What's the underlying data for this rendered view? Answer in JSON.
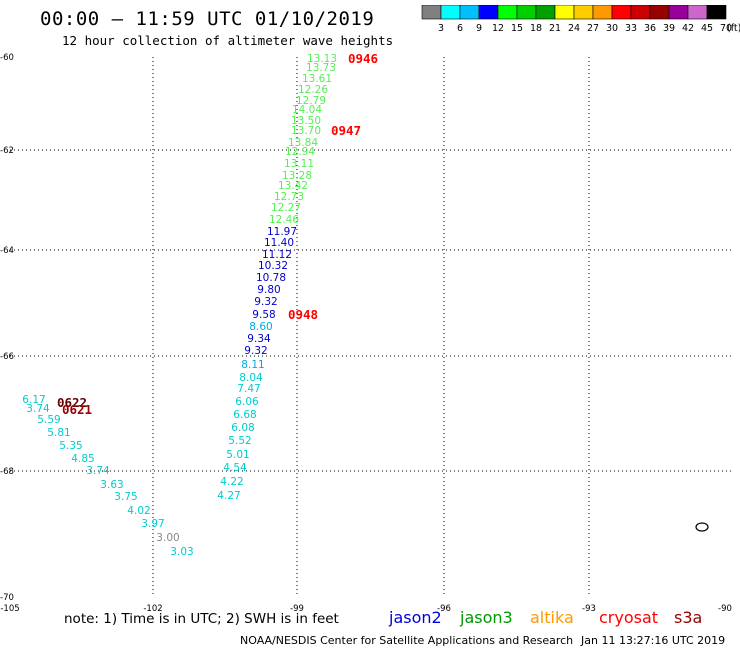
{
  "header": {
    "title": "00:00 – 11:59 UTC 01/10/2019",
    "subtitle": "12 hour collection of altimeter wave heights"
  },
  "colorbar": {
    "colors": [
      "#808080",
      "#00ffff",
      "#00bfff",
      "#0000ff",
      "#00ff00",
      "#00d000",
      "#00a000",
      "#ffff00",
      "#ffcc00",
      "#ff9900",
      "#ff0000",
      "#cc0000",
      "#990000",
      "#990099",
      "#cc66cc",
      "#000000"
    ],
    "labels": [
      "3",
      "6",
      "9",
      "12",
      "15",
      "18",
      "21",
      "24",
      "27",
      "30",
      "33",
      "36",
      "39",
      "42",
      "45",
      "70"
    ],
    "unit": "(ft)"
  },
  "axes": {
    "lat_ticks": [
      "-60",
      "-62",
      "-64",
      "-66",
      "-68",
      "-70"
    ],
    "lon_ticks": [
      "-105",
      "-102",
      "-99",
      "-96",
      "-93",
      "-90"
    ]
  },
  "track_labels": [
    {
      "text": "0946",
      "color": "#ff0000"
    },
    {
      "text": "0947",
      "color": "#ff0000"
    },
    {
      "text": "0948",
      "color": "#ff0000"
    },
    {
      "text": "0622",
      "color": "#660000"
    },
    {
      "text": "0621",
      "color": "#990000"
    }
  ],
  "points": [
    {
      "v": "13.13",
      "c": "#55ee55"
    },
    {
      "v": "13.73",
      "c": "#55ee55"
    },
    {
      "v": "13.61",
      "c": "#55ee55"
    },
    {
      "v": "12.26",
      "c": "#55ee55"
    },
    {
      "v": "12.79",
      "c": "#55ee55"
    },
    {
      "v": "14.04",
      "c": "#55ee55"
    },
    {
      "v": "13.50",
      "c": "#55ee55"
    },
    {
      "v": "13.70",
      "c": "#55ee55"
    },
    {
      "v": "13.84",
      "c": "#55ee55"
    },
    {
      "v": "12.94",
      "c": "#55ee55"
    },
    {
      "v": "13.11",
      "c": "#55ee55"
    },
    {
      "v": "13.28",
      "c": "#55ee55"
    },
    {
      "v": "13.42",
      "c": "#55ee55"
    },
    {
      "v": "12.73",
      "c": "#55ee55"
    },
    {
      "v": "12.27",
      "c": "#55ee55"
    },
    {
      "v": "12.46",
      "c": "#55ee55"
    },
    {
      "v": "11.97",
      "c": "#0000cc"
    },
    {
      "v": "11.40",
      "c": "#0000cc"
    },
    {
      "v": "11.12",
      "c": "#0000cc"
    },
    {
      "v": "10.32",
      "c": "#0000cc"
    },
    {
      "v": "10.78",
      "c": "#0000cc"
    },
    {
      "v": "9.80",
      "c": "#0000cc"
    },
    {
      "v": "9.32",
      "c": "#0000cc"
    },
    {
      "v": "9.58",
      "c": "#0000cc"
    },
    {
      "v": "8.60",
      "c": "#00aadd"
    },
    {
      "v": "9.34",
      "c": "#0000cc"
    },
    {
      "v": "9.32",
      "c": "#0000cc"
    },
    {
      "v": "8.11",
      "c": "#00aadd"
    },
    {
      "v": "8.04",
      "c": "#00cccc"
    },
    {
      "v": "7.47",
      "c": "#00cccc"
    },
    {
      "v": "6.06",
      "c": "#00cccc"
    },
    {
      "v": "6.68",
      "c": "#00cccc"
    },
    {
      "v": "6.08",
      "c": "#00cccc"
    },
    {
      "v": "5.52",
      "c": "#00cccc"
    },
    {
      "v": "5.01",
      "c": "#00cccc"
    },
    {
      "v": "4.54",
      "c": "#00cccc"
    },
    {
      "v": "4.22",
      "c": "#00cccc"
    },
    {
      "v": "4.27",
      "c": "#00cccc"
    },
    {
      "v": "6.17",
      "c": "#00cccc"
    },
    {
      "v": "3.74",
      "c": "#00cccc"
    },
    {
      "v": "5.59",
      "c": "#00cccc"
    },
    {
      "v": "5.81",
      "c": "#00cccc"
    },
    {
      "v": "5.35",
      "c": "#00cccc"
    },
    {
      "v": "4.85",
      "c": "#00cccc"
    },
    {
      "v": "3.74",
      "c": "#00cccc"
    },
    {
      "v": "3.63",
      "c": "#00cccc"
    },
    {
      "v": "3.75",
      "c": "#00cccc"
    },
    {
      "v": "4.02",
      "c": "#00cccc"
    },
    {
      "v": "3.97",
      "c": "#00cccc"
    },
    {
      "v": "3.00",
      "c": "#888888"
    },
    {
      "v": "3.03",
      "c": "#00cccc"
    }
  ],
  "footer": {
    "note": "note:  1) Time is in UTC; 2) SWH is in feet",
    "legend": [
      {
        "text": "jason2",
        "color": "#0000dd"
      },
      {
        "text": "jason3",
        "color": "#009900"
      },
      {
        "text": "altika",
        "color": "#ff9900"
      },
      {
        "text": "cryosat",
        "color": "#ff0000"
      },
      {
        "text": "s3a",
        "color": "#990000"
      }
    ],
    "credit": "NOAA/NESDIS Center for Satellite Applications and Research",
    "timestamp": "Jan 11 13:27:16 UTC 2019"
  }
}
